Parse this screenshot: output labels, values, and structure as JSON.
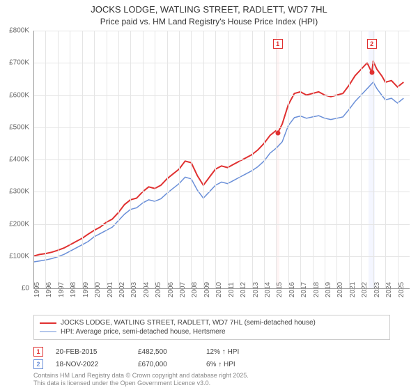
{
  "title_line1": "JOCKS LODGE, WATLING STREET, RADLETT, WD7 7HL",
  "title_line2": "Price paid vs. HM Land Registry's House Price Index (HPI)",
  "chart": {
    "type": "line",
    "background_color": "#ffffff",
    "grid_color": "#e5e5e5",
    "axis_color": "#999999",
    "ylim": [
      0,
      800000
    ],
    "ytick_step": 100000,
    "yticks": [
      "£0",
      "£100K",
      "£200K",
      "£300K",
      "£400K",
      "£500K",
      "£600K",
      "£700K",
      "£800K"
    ],
    "x_start": 1995,
    "x_end": 2026,
    "xticks": [
      "1995",
      "1996",
      "1997",
      "1998",
      "1999",
      "2000",
      "2001",
      "2002",
      "2003",
      "2004",
      "2005",
      "2006",
      "2007",
      "2008",
      "2009",
      "2010",
      "2011",
      "2012",
      "2013",
      "2014",
      "2015",
      "2016",
      "2017",
      "2018",
      "2019",
      "2020",
      "2021",
      "2022",
      "2023",
      "2024",
      "2025"
    ],
    "series": [
      {
        "name": "property",
        "label": "JOCKS LODGE, WATLING STREET, RADLETT, WD7 7HL (semi-detached house)",
        "color": "#e03030",
        "line_width": 2,
        "data": [
          [
            1995,
            100000
          ],
          [
            1995.5,
            105000
          ],
          [
            1996,
            108000
          ],
          [
            1996.5,
            112000
          ],
          [
            1997,
            118000
          ],
          [
            1997.5,
            125000
          ],
          [
            1998,
            135000
          ],
          [
            1998.5,
            145000
          ],
          [
            1999,
            155000
          ],
          [
            1999.5,
            168000
          ],
          [
            2000,
            180000
          ],
          [
            2000.5,
            190000
          ],
          [
            2001,
            205000
          ],
          [
            2001.5,
            215000
          ],
          [
            2002,
            235000
          ],
          [
            2002.5,
            260000
          ],
          [
            2003,
            275000
          ],
          [
            2003.5,
            280000
          ],
          [
            2004,
            300000
          ],
          [
            2004.5,
            315000
          ],
          [
            2005,
            310000
          ],
          [
            2005.5,
            320000
          ],
          [
            2006,
            340000
          ],
          [
            2006.5,
            355000
          ],
          [
            2007,
            370000
          ],
          [
            2007.5,
            395000
          ],
          [
            2008,
            390000
          ],
          [
            2008.5,
            350000
          ],
          [
            2009,
            320000
          ],
          [
            2009.5,
            345000
          ],
          [
            2010,
            370000
          ],
          [
            2010.5,
            380000
          ],
          [
            2011,
            375000
          ],
          [
            2011.5,
            385000
          ],
          [
            2012,
            395000
          ],
          [
            2012.5,
            405000
          ],
          [
            2013,
            415000
          ],
          [
            2013.5,
            430000
          ],
          [
            2014,
            450000
          ],
          [
            2014.5,
            475000
          ],
          [
            2015,
            490000
          ],
          [
            2015.13,
            482500
          ],
          [
            2015.5,
            510000
          ],
          [
            2016,
            570000
          ],
          [
            2016.5,
            605000
          ],
          [
            2017,
            610000
          ],
          [
            2017.5,
            600000
          ],
          [
            2018,
            605000
          ],
          [
            2018.5,
            610000
          ],
          [
            2019,
            600000
          ],
          [
            2019.5,
            595000
          ],
          [
            2020,
            600000
          ],
          [
            2020.5,
            605000
          ],
          [
            2021,
            630000
          ],
          [
            2021.5,
            660000
          ],
          [
            2022,
            680000
          ],
          [
            2022.5,
            700000
          ],
          [
            2022.88,
            670000
          ],
          [
            2023,
            705000
          ],
          [
            2023.3,
            680000
          ],
          [
            2023.7,
            660000
          ],
          [
            2024,
            640000
          ],
          [
            2024.5,
            645000
          ],
          [
            2025,
            625000
          ],
          [
            2025.5,
            640000
          ]
        ]
      },
      {
        "name": "hpi",
        "label": "HPI: Average price, semi-detached house, Hertsmere",
        "color": "#6a8fd8",
        "line_width": 1.5,
        "data": [
          [
            1995,
            82000
          ],
          [
            1995.5,
            85000
          ],
          [
            1996,
            88000
          ],
          [
            1996.5,
            92000
          ],
          [
            1997,
            98000
          ],
          [
            1997.5,
            105000
          ],
          [
            1998,
            115000
          ],
          [
            1998.5,
            125000
          ],
          [
            1999,
            135000
          ],
          [
            1999.5,
            145000
          ],
          [
            2000,
            160000
          ],
          [
            2000.5,
            170000
          ],
          [
            2001,
            180000
          ],
          [
            2001.5,
            190000
          ],
          [
            2002,
            210000
          ],
          [
            2002.5,
            230000
          ],
          [
            2003,
            245000
          ],
          [
            2003.5,
            250000
          ],
          [
            2004,
            265000
          ],
          [
            2004.5,
            275000
          ],
          [
            2005,
            270000
          ],
          [
            2005.5,
            278000
          ],
          [
            2006,
            295000
          ],
          [
            2006.5,
            310000
          ],
          [
            2007,
            325000
          ],
          [
            2007.5,
            345000
          ],
          [
            2008,
            340000
          ],
          [
            2008.5,
            305000
          ],
          [
            2009,
            280000
          ],
          [
            2009.5,
            300000
          ],
          [
            2010,
            320000
          ],
          [
            2010.5,
            330000
          ],
          [
            2011,
            325000
          ],
          [
            2011.5,
            335000
          ],
          [
            2012,
            345000
          ],
          [
            2012.5,
            355000
          ],
          [
            2013,
            365000
          ],
          [
            2013.5,
            378000
          ],
          [
            2014,
            395000
          ],
          [
            2014.5,
            420000
          ],
          [
            2015,
            435000
          ],
          [
            2015.5,
            455000
          ],
          [
            2016,
            505000
          ],
          [
            2016.5,
            530000
          ],
          [
            2017,
            535000
          ],
          [
            2017.5,
            528000
          ],
          [
            2018,
            532000
          ],
          [
            2018.5,
            536000
          ],
          [
            2019,
            528000
          ],
          [
            2019.5,
            524000
          ],
          [
            2020,
            528000
          ],
          [
            2020.5,
            532000
          ],
          [
            2021,
            555000
          ],
          [
            2021.5,
            580000
          ],
          [
            2022,
            600000
          ],
          [
            2022.5,
            620000
          ],
          [
            2023,
            640000
          ],
          [
            2023.3,
            620000
          ],
          [
            2023.7,
            600000
          ],
          [
            2024,
            585000
          ],
          [
            2024.5,
            590000
          ],
          [
            2025,
            575000
          ],
          [
            2025.5,
            590000
          ]
        ]
      }
    ],
    "highlight_bands": [
      {
        "x": 2015.13,
        "color": "#ffe4e4",
        "width_years": 0.25
      },
      {
        "x": 2022.88,
        "color": "#e4e8ff",
        "width_years": 0.5
      }
    ],
    "sale_markers": [
      {
        "num": "1",
        "x": 2015.13,
        "y_box": 760000,
        "dot_y": 482500,
        "color": "#e03030"
      },
      {
        "num": "2",
        "x": 2022.88,
        "y_box": 760000,
        "dot_y": 670000,
        "color": "#e03030"
      }
    ]
  },
  "legend": {
    "items": [
      {
        "color": "#e03030",
        "width": 2
      },
      {
        "color": "#6a8fd8",
        "width": 1.5
      }
    ]
  },
  "sales": [
    {
      "num": "1",
      "color": "#e03030",
      "date": "20-FEB-2015",
      "price": "£482,500",
      "delta": "12% ↑ HPI"
    },
    {
      "num": "2",
      "color": "#6a8fd8",
      "date": "18-NOV-2022",
      "price": "£670,000",
      "delta": "6% ↑ HPI"
    }
  ],
  "footnote_line1": "Contains HM Land Registry data © Crown copyright and database right 2025.",
  "footnote_line2": "This data is licensed under the Open Government Licence v3.0."
}
